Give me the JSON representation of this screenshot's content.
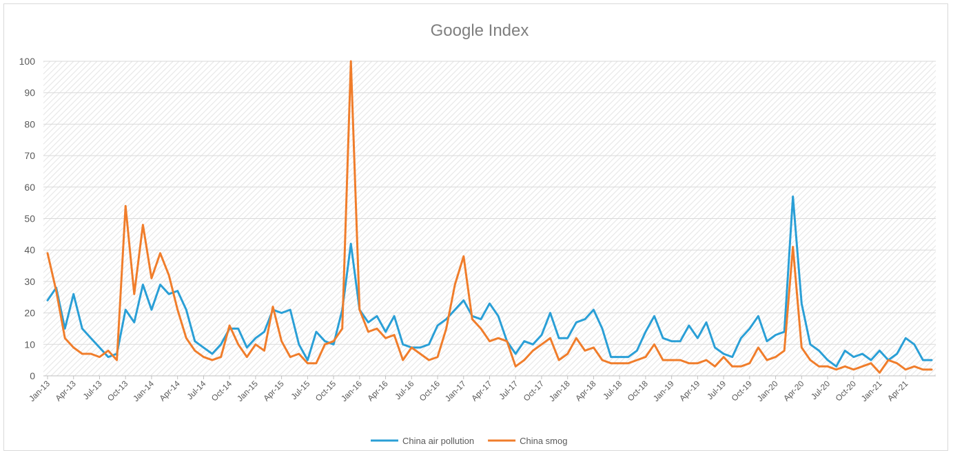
{
  "chart_data": {
    "type": "line",
    "title": "Google Index",
    "xlabel": "",
    "ylabel": "",
    "ylim": [
      0,
      100
    ],
    "yticks": [
      0,
      10,
      20,
      30,
      40,
      50,
      60,
      70,
      80,
      90,
      100
    ],
    "grid": true,
    "legend_position": "bottom",
    "x_tick_labels": [
      "Jan-13",
      "Apr-13",
      "Jul-13",
      "Oct-13",
      "Jan-14",
      "Apr-14",
      "Jul-14",
      "Oct-14",
      "Jan-15",
      "Apr-15",
      "Jul-15",
      "Oct-15",
      "Jan-16",
      "Apr-16",
      "Jul-16",
      "Oct-16",
      "Jan-17",
      "Apr-17",
      "Jul-17",
      "Oct-17",
      "Jan-18",
      "Apr-18",
      "Jul-18",
      "Oct-18",
      "Jan-19",
      "Apr-19",
      "Jul-19",
      "Oct-19",
      "Jan-20",
      "Apr-20",
      "Jul-20",
      "Oct-20",
      "Jan-21",
      "Apr-21"
    ],
    "x_tick_step_months": 3,
    "num_months": 103,
    "series": [
      {
        "name": "China air pollution",
        "color": "#2a9fd6",
        "values": [
          24,
          28,
          15,
          26,
          15,
          12,
          9,
          6,
          7,
          21,
          17,
          29,
          21,
          29,
          26,
          27,
          21,
          11,
          9,
          7,
          10,
          15,
          15,
          9,
          12,
          14,
          21,
          20,
          21,
          10,
          5,
          14,
          11,
          10,
          21,
          42,
          21,
          17,
          19,
          14,
          19,
          10,
          9,
          9,
          10,
          16,
          18,
          21,
          24,
          19,
          18,
          23,
          19,
          11,
          7,
          11,
          10,
          13,
          20,
          12,
          12,
          17,
          18,
          21,
          15,
          6,
          6,
          6,
          8,
          14,
          19,
          12,
          11,
          11,
          16,
          12,
          17,
          9,
          7,
          6,
          12,
          15,
          19,
          11,
          13,
          14,
          57,
          23,
          10,
          8,
          5,
          3,
          8,
          6,
          7,
          5,
          8,
          5,
          7,
          12,
          10,
          5,
          5
        ]
      },
      {
        "name": "China smog",
        "color": "#f07d2b",
        "values": [
          39,
          27,
          12,
          9,
          7,
          7,
          6,
          8,
          5,
          54,
          26,
          48,
          31,
          39,
          32,
          21,
          12,
          8,
          6,
          5,
          6,
          16,
          10,
          6,
          10,
          8,
          22,
          11,
          6,
          7,
          4,
          4,
          10,
          11,
          15,
          100,
          21,
          14,
          15,
          12,
          13,
          5,
          9,
          7,
          5,
          6,
          15,
          29,
          38,
          18,
          15,
          11,
          12,
          11,
          3,
          5,
          8,
          10,
          12,
          5,
          7,
          12,
          8,
          9,
          5,
          4,
          4,
          4,
          5,
          6,
          10,
          5,
          5,
          5,
          4,
          4,
          5,
          3,
          6,
          3,
          3,
          4,
          9,
          5,
          6,
          8,
          41,
          9,
          5,
          3,
          3,
          2,
          3,
          2,
          3,
          4,
          1,
          5,
          4,
          2,
          3,
          2,
          2
        ]
      }
    ]
  }
}
